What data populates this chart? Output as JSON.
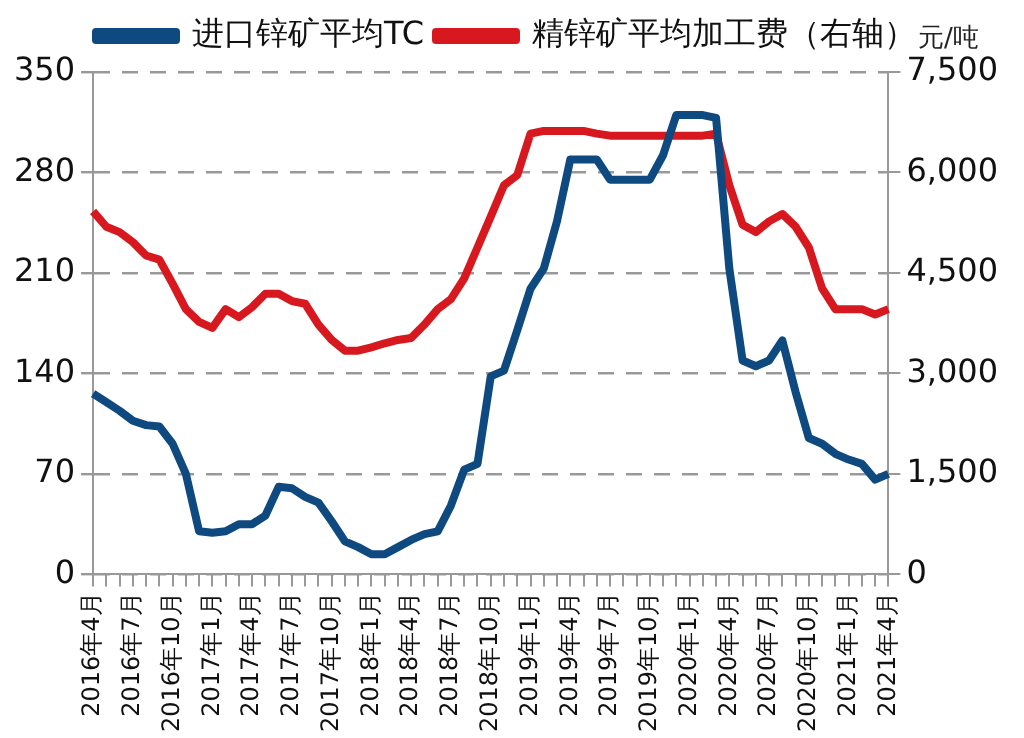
{
  "chart_data": {
    "type": "line",
    "y2label": "元/吨",
    "categories": [
      "2016年4月",
      null,
      null,
      "2016年7月",
      null,
      null,
      "2016年10月",
      null,
      null,
      "2017年1月",
      null,
      null,
      "2017年4月",
      null,
      null,
      "2017年7月",
      null,
      null,
      "2017年10月",
      null,
      null,
      "2018年1月",
      null,
      null,
      "2018年4月",
      null,
      null,
      "2018年7月",
      null,
      null,
      "2018年10月",
      null,
      null,
      "2019年1月",
      null,
      null,
      "2019年4月",
      null,
      null,
      "2019年7月",
      null,
      null,
      "2019年10月",
      null,
      null,
      "2020年1月",
      null,
      null,
      "2020年4月",
      null,
      null,
      "2020年7月",
      null,
      null,
      "2020年10月",
      null,
      null,
      "2021年1月",
      null,
      null,
      "2021年4月"
    ],
    "series": [
      {
        "name": "进口锌矿平均TC",
        "color": "#0e4a80",
        "values": [
          126,
          120,
          114,
          107,
          104,
          103,
          91,
          70,
          30,
          29,
          30,
          35,
          35,
          41,
          61,
          60,
          54,
          50,
          37,
          23,
          19,
          14,
          14,
          19,
          24,
          28,
          30,
          48,
          73,
          77,
          138,
          142,
          170,
          199,
          213,
          246,
          289,
          289,
          289,
          275,
          275,
          275,
          275,
          292,
          320,
          320,
          320,
          318,
          213,
          149,
          145,
          149,
          163,
          127,
          95,
          91,
          84,
          80,
          77,
          66,
          70
        ]
      },
      {
        "name": "精锌矿平均加工费（右轴）",
        "color": "#d7191f",
        "axis": "y2",
        "values": [
          5420,
          5190,
          5110,
          4960,
          4760,
          4700,
          4340,
          3960,
          3770,
          3680,
          3960,
          3840,
          3990,
          4190,
          4190,
          4080,
          4040,
          3730,
          3500,
          3340,
          3340,
          3390,
          3450,
          3500,
          3530,
          3730,
          3960,
          4110,
          4420,
          4880,
          5340,
          5810,
          5960,
          6580,
          6620,
          6620,
          6620,
          6620,
          6580,
          6550,
          6550,
          6550,
          6550,
          6550,
          6550,
          6550,
          6550,
          6580,
          5810,
          5220,
          5110,
          5270,
          5380,
          5190,
          4880,
          4270,
          3960,
          3960,
          3960,
          3880,
          3960
        ]
      }
    ],
    "ylim": [
      0,
      350
    ],
    "yticks": [
      0,
      70,
      140,
      210,
      280,
      350
    ],
    "y2lim": [
      0,
      7500
    ],
    "y2ticks": [
      0,
      {
        "value": 1500,
        "label": "1,500"
      },
      {
        "value": 3000,
        "label": "3,000"
      },
      {
        "value": 4500,
        "label": "4,500"
      },
      {
        "value": 6000,
        "label": "6,000"
      },
      {
        "value": 7500,
        "label": "7,500"
      }
    ],
    "grid": "y",
    "legend": "top",
    "marker": "none",
    "line_style": "solid"
  }
}
